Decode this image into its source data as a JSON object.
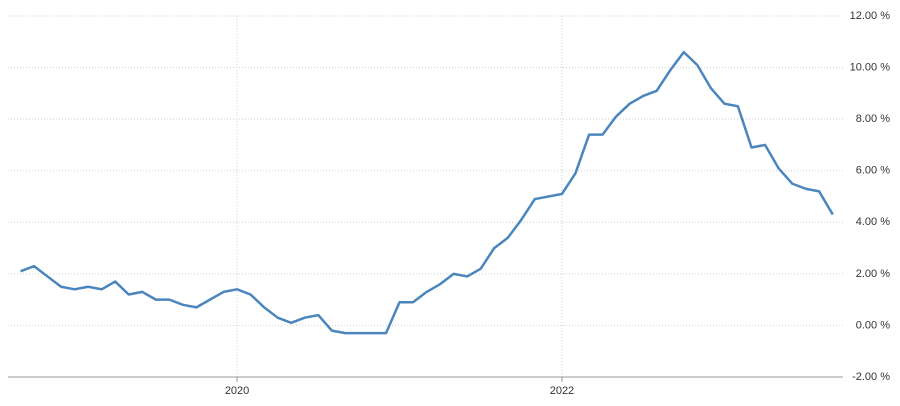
{
  "chart_data": {
    "type": "line",
    "x": [
      2018.667,
      2018.75,
      2018.833,
      2018.917,
      2019.0,
      2019.083,
      2019.167,
      2019.25,
      2019.333,
      2019.417,
      2019.5,
      2019.583,
      2019.667,
      2019.75,
      2019.833,
      2019.917,
      2020.0,
      2020.083,
      2020.167,
      2020.25,
      2020.333,
      2020.417,
      2020.5,
      2020.583,
      2020.667,
      2020.75,
      2020.833,
      2020.917,
      2021.0,
      2021.083,
      2021.167,
      2021.25,
      2021.333,
      2021.417,
      2021.5,
      2021.583,
      2021.667,
      2021.75,
      2021.833,
      2021.917,
      2022.0,
      2022.083,
      2022.167,
      2022.25,
      2022.333,
      2022.417,
      2022.5,
      2022.583,
      2022.667,
      2022.75,
      2022.833,
      2022.917,
      2023.0,
      2023.083,
      2023.167,
      2023.25,
      2023.333,
      2023.417,
      2023.5,
      2023.583,
      2023.667
    ],
    "series": [
      {
        "color": "#4a86bd",
        "values": [
          2.1,
          2.3,
          1.9,
          1.5,
          1.4,
          1.5,
          1.4,
          1.7,
          1.2,
          1.3,
          1.0,
          1.0,
          0.8,
          0.7,
          1.0,
          1.3,
          1.4,
          1.2,
          0.7,
          0.3,
          0.1,
          0.3,
          0.4,
          -0.2,
          -0.3,
          -0.3,
          -0.3,
          -0.3,
          0.9,
          0.9,
          1.3,
          1.6,
          2.0,
          1.9,
          2.2,
          3.0,
          3.4,
          4.1,
          4.9,
          5.0,
          5.1,
          5.9,
          7.4,
          7.4,
          8.1,
          8.6,
          8.9,
          9.1,
          9.9,
          10.6,
          10.1,
          9.2,
          8.6,
          8.5,
          6.9,
          7.0,
          6.1,
          5.5,
          5.3,
          5.2,
          4.3
        ]
      }
    ],
    "xlim": [
      2018.59,
      2023.73
    ],
    "xticks": [
      2020,
      2022
    ],
    "ylim": [
      -2,
      12
    ],
    "yticks": [
      {
        "value": 12,
        "label": "12.00 %"
      },
      {
        "value": 10,
        "label": "10.00 %"
      },
      {
        "value": 8,
        "label": "8.00 %"
      },
      {
        "value": 6,
        "label": "6.00 %"
      },
      {
        "value": 4,
        "label": "4.00 %"
      },
      {
        "value": 2,
        "label": "2.00 %"
      },
      {
        "value": 0,
        "label": "0.00 %"
      },
      {
        "value": -2,
        "label": "-2.00 %"
      }
    ],
    "grid": true
  }
}
